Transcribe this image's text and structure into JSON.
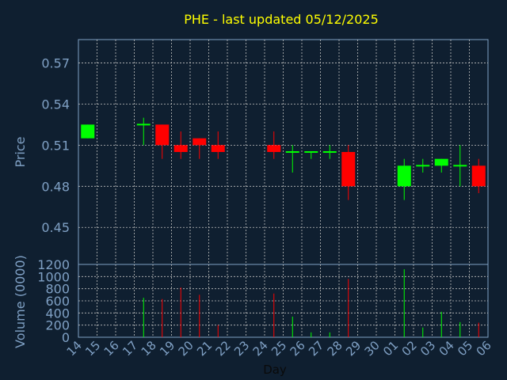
{
  "chart_data": {
    "type": "candlestick",
    "title": "PHE - last updated 05/12/2025",
    "xlabel": "Day",
    "price_panel": {
      "ylabel": "Price",
      "yticks": [
        0.45,
        0.48,
        0.51,
        0.54,
        0.57
      ],
      "ylim": [
        0.423,
        0.587
      ],
      "grid": true
    },
    "volume_panel": {
      "ylabel": "Volume (0000)",
      "yticks": [
        0,
        200,
        400,
        600,
        800,
        1000,
        1200
      ],
      "ylim": [
        0,
        1200
      ],
      "grid": true
    },
    "xticks": [
      "14",
      "15",
      "16",
      "17",
      "18",
      "19",
      "20",
      "21",
      "22",
      "23",
      "24",
      "25",
      "26",
      "27",
      "28",
      "29",
      "30",
      "01",
      "02",
      "03",
      "04",
      "05",
      "06"
    ],
    "candles": [
      {
        "x": 0,
        "open": 0.515,
        "high": 0.525,
        "low": 0.515,
        "close": 0.525,
        "volume": 0
      },
      {
        "x": 3,
        "open": 0.525,
        "high": 0.53,
        "low": 0.51,
        "close": 0.525,
        "volume": 650
      },
      {
        "x": 4,
        "open": 0.525,
        "high": 0.525,
        "low": 0.5,
        "close": 0.51,
        "volume": 630
      },
      {
        "x": 5,
        "open": 0.51,
        "high": 0.52,
        "low": 0.5,
        "close": 0.505,
        "volume": 820
      },
      {
        "x": 6,
        "open": 0.515,
        "high": 0.515,
        "low": 0.5,
        "close": 0.51,
        "volume": 700
      },
      {
        "x": 7,
        "open": 0.51,
        "high": 0.52,
        "low": 0.5,
        "close": 0.505,
        "volume": 200
      },
      {
        "x": 10,
        "open": 0.51,
        "high": 0.52,
        "low": 0.5,
        "close": 0.505,
        "volume": 720
      },
      {
        "x": 11,
        "open": 0.505,
        "high": 0.51,
        "low": 0.49,
        "close": 0.505,
        "volume": 340
      },
      {
        "x": 12,
        "open": 0.505,
        "high": 0.505,
        "low": 0.5,
        "close": 0.505,
        "volume": 80
      },
      {
        "x": 13,
        "open": 0.505,
        "high": 0.51,
        "low": 0.5,
        "close": 0.505,
        "volume": 80
      },
      {
        "x": 14,
        "open": 0.505,
        "high": 0.51,
        "low": 0.47,
        "close": 0.48,
        "volume": 960
      },
      {
        "x": 17,
        "open": 0.48,
        "high": 0.5,
        "low": 0.47,
        "close": 0.495,
        "volume": 1120
      },
      {
        "x": 18,
        "open": 0.495,
        "high": 0.5,
        "low": 0.49,
        "close": 0.495,
        "volume": 160
      },
      {
        "x": 19,
        "open": 0.495,
        "high": 0.5,
        "low": 0.49,
        "close": 0.5,
        "volume": 420
      },
      {
        "x": 20,
        "open": 0.495,
        "high": 0.51,
        "low": 0.48,
        "close": 0.495,
        "volume": 250
      },
      {
        "x": 21,
        "open": 0.495,
        "high": 0.5,
        "low": 0.475,
        "close": 0.48,
        "volume": 240
      }
    ],
    "colors": {
      "background": "#0f1f30",
      "up": "#00ff00",
      "down": "#ff0000",
      "title": "#ffff00",
      "axis": "#7fa0c4",
      "grid": "#c0c0c0"
    }
  }
}
